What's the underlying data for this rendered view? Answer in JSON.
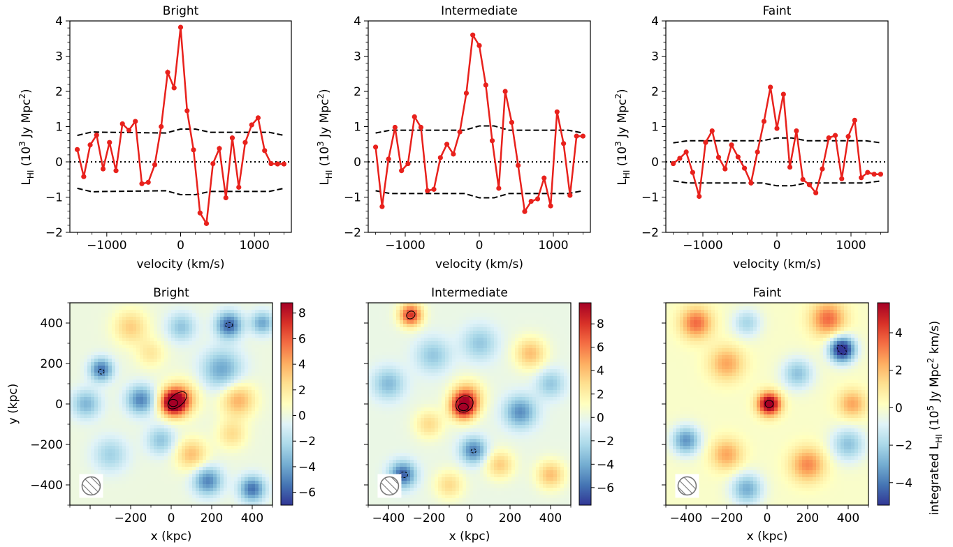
{
  "chart_data": [
    {
      "type": "line",
      "title": "Bright",
      "xlabel": "velocity (km/s)",
      "ylabel": "L",
      "ylabel_sub": "HI",
      "ylabel_unit": "(10",
      "ylabel_unit_sup": "3",
      "ylabel_unit_rest": " Jy Mpc",
      "ylabel_unit_sup2": "2",
      "ylabel_unit_end": ")",
      "xlim": [
        -1500,
        1500
      ],
      "ylim": [
        -2,
        4
      ],
      "xticks": [
        -1000,
        0,
        1000
      ],
      "xtick_labels": [
        "−1000",
        "0",
        "1000"
      ],
      "yticks": [
        -2,
        -1,
        0,
        1,
        2,
        3,
        4
      ],
      "ytick_labels": [
        "−2",
        "−1",
        "0",
        "1",
        "2",
        "3",
        "4"
      ],
      "series": [
        {
          "color": "#e8211c",
          "x": [
            -1400,
            -1312,
            -1225,
            -1138,
            -1050,
            -963,
            -875,
            -788,
            -700,
            -613,
            -525,
            -438,
            -350,
            -263,
            -175,
            -88,
            0,
            88,
            175,
            263,
            350,
            438,
            525,
            613,
            700,
            788,
            875,
            963,
            1050,
            1138,
            1225,
            1313,
            1400
          ],
          "y": [
            0.35,
            -0.42,
            0.48,
            0.76,
            -0.2,
            0.55,
            -0.25,
            1.08,
            0.9,
            1.15,
            -0.62,
            -0.58,
            -0.08,
            1.0,
            2.54,
            2.1,
            3.82,
            1.45,
            0.34,
            -1.45,
            -1.75,
            -0.05,
            0.38,
            -1.02,
            0.68,
            -0.72,
            0.55,
            1.05,
            1.25,
            0.32,
            -0.05,
            -0.06,
            -0.06
          ]
        }
      ],
      "envelope_upper": {
        "x": [
          -1400,
          -1200,
          -1000,
          -600,
          -200,
          0,
          200,
          400,
          600,
          1000,
          1200,
          1400
        ],
        "y": [
          0.75,
          0.85,
          0.84,
          0.83,
          0.82,
          0.93,
          0.93,
          0.84,
          0.84,
          0.84,
          0.84,
          0.75
        ]
      },
      "envelope_lower": {
        "x": [
          -1400,
          -1200,
          -1000,
          -600,
          -200,
          0,
          200,
          400,
          600,
          1000,
          1200,
          1400
        ],
        "y": [
          -0.75,
          -0.85,
          -0.84,
          -0.83,
          -0.82,
          -0.93,
          -0.93,
          -0.84,
          -0.84,
          -0.84,
          -0.84,
          -0.75
        ]
      }
    },
    {
      "type": "line",
      "title": "Intermediate",
      "xlabel": "velocity (km/s)",
      "ylabel": "L",
      "ylabel_sub": "HI",
      "ylabel_unit": "(10",
      "ylabel_unit_sup": "3",
      "ylabel_unit_rest": " Jy Mpc",
      "ylabel_unit_sup2": "2",
      "ylabel_unit_end": ")",
      "xlim": [
        -1500,
        1500
      ],
      "ylim": [
        -2,
        4
      ],
      "xticks": [
        -1000,
        0,
        1000
      ],
      "xtick_labels": [
        "−1000",
        "0",
        "1000"
      ],
      "yticks": [
        -2,
        -1,
        0,
        1,
        2,
        3,
        4
      ],
      "ytick_labels": [
        "−2",
        "−1",
        "0",
        "1",
        "2",
        "3",
        "4"
      ],
      "series": [
        {
          "color": "#e8211c",
          "x": [
            -1400,
            -1312,
            -1225,
            -1138,
            -1050,
            -963,
            -875,
            -788,
            -700,
            -613,
            -525,
            -438,
            -350,
            -263,
            -175,
            -88,
            0,
            88,
            175,
            263,
            350,
            438,
            525,
            613,
            700,
            788,
            875,
            963,
            1050,
            1138,
            1225,
            1313,
            1400
          ],
          "y": [
            0.42,
            -1.27,
            0.08,
            0.98,
            -0.25,
            -0.05,
            1.28,
            0.98,
            -0.82,
            -0.78,
            0.12,
            0.5,
            0.22,
            0.85,
            1.95,
            3.6,
            3.3,
            2.18,
            0.6,
            -0.75,
            2.0,
            1.12,
            -0.1,
            -1.41,
            -1.12,
            -1.05,
            -0.46,
            -1.25,
            1.42,
            0.52,
            -0.95,
            0.73,
            0.73
          ]
        }
      ],
      "envelope_upper": {
        "x": [
          -1400,
          -1200,
          -1000,
          -600,
          -200,
          0,
          200,
          400,
          600,
          1000,
          1200,
          1400
        ],
        "y": [
          0.82,
          0.9,
          0.9,
          0.9,
          0.9,
          1.02,
          1.02,
          0.9,
          0.9,
          0.9,
          0.9,
          0.82
        ]
      },
      "envelope_lower": {
        "x": [
          -1400,
          -1200,
          -1000,
          -600,
          -200,
          0,
          200,
          400,
          600,
          1000,
          1200,
          1400
        ],
        "y": [
          -0.82,
          -0.9,
          -0.9,
          -0.9,
          -0.9,
          -1.02,
          -1.02,
          -0.9,
          -0.9,
          -0.9,
          -0.9,
          -0.82
        ]
      }
    },
    {
      "type": "line",
      "title": "Faint",
      "xlabel": "velocity (km/s)",
      "ylabel": "L",
      "ylabel_sub": "HI",
      "ylabel_unit": "(10",
      "ylabel_unit_sup": "3",
      "ylabel_unit_rest": " Jy Mpc",
      "ylabel_unit_sup2": "2",
      "ylabel_unit_end": ")",
      "xlim": [
        -1500,
        1500
      ],
      "ylim": [
        -2,
        4
      ],
      "xticks": [
        -1000,
        0,
        1000
      ],
      "xtick_labels": [
        "−1000",
        "0",
        "1000"
      ],
      "yticks": [
        -2,
        -1,
        0,
        1,
        2,
        3,
        4
      ],
      "ytick_labels": [
        "−2",
        "−1",
        "0",
        "1",
        "2",
        "3",
        "4"
      ],
      "series": [
        {
          "color": "#e8211c",
          "x": [
            -1400,
            -1312,
            -1225,
            -1138,
            -1050,
            -963,
            -875,
            -788,
            -700,
            -613,
            -525,
            -438,
            -350,
            -263,
            -175,
            -88,
            0,
            88,
            175,
            263,
            350,
            438,
            525,
            613,
            700,
            788,
            875,
            963,
            1050,
            1138,
            1225,
            1313,
            1400
          ],
          "y": [
            -0.05,
            0.1,
            0.28,
            -0.3,
            -0.98,
            0.55,
            0.88,
            0.13,
            -0.2,
            0.48,
            0.14,
            -0.18,
            -0.6,
            0.28,
            1.15,
            2.12,
            0.95,
            1.92,
            -0.15,
            0.88,
            -0.5,
            -0.65,
            -0.88,
            -0.2,
            0.68,
            0.75,
            -0.48,
            0.72,
            1.18,
            -0.45,
            -0.3,
            -0.35,
            -0.35
          ]
        }
      ],
      "envelope_upper": {
        "x": [
          -1400,
          -1200,
          -1000,
          -600,
          -200,
          0,
          200,
          400,
          600,
          1000,
          1200,
          1400
        ],
        "y": [
          0.54,
          0.6,
          0.6,
          0.6,
          0.6,
          0.68,
          0.68,
          0.6,
          0.6,
          0.6,
          0.6,
          0.54
        ]
      },
      "envelope_lower": {
        "x": [
          -1400,
          -1200,
          -1000,
          -600,
          -200,
          0,
          200,
          400,
          600,
          1000,
          1200,
          1400
        ],
        "y": [
          -0.54,
          -0.6,
          -0.6,
          -0.6,
          -0.6,
          -0.68,
          -0.68,
          -0.6,
          -0.6,
          -0.6,
          -0.6,
          -0.54
        ]
      }
    },
    {
      "type": "heatmap",
      "title": "Bright",
      "xlabel": "x (kpc)",
      "ylabel": "y (kpc)",
      "xlim": [
        -500,
        500
      ],
      "ylim": [
        -500,
        500
      ],
      "xticks": [
        -400,
        -200,
        0,
        200,
        400
      ],
      "xtick_labels": [
        "",
        "−200",
        "0",
        "200",
        "400"
      ],
      "yticks": [
        -400,
        -200,
        0,
        200,
        400
      ],
      "ytick_labels": [
        "−400",
        "−200",
        "0",
        "200",
        "400"
      ],
      "colorbar": {
        "vmin": -7,
        "vmax": 8.8,
        "ticks": [
          -6,
          -4,
          -2,
          0,
          2,
          4,
          6,
          8
        ],
        "tick_labels": [
          "−6",
          "−4",
          "−2",
          "0",
          "2",
          "4",
          "6",
          "8"
        ]
      },
      "blobs": [
        {
          "x": 10,
          "y": 5,
          "sigma": 45,
          "value": 9.0
        },
        {
          "x": 50,
          "y": 30,
          "sigma": 60,
          "value": 4.0
        },
        {
          "x": 285,
          "y": 390,
          "sigma": 45,
          "value": -6.0
        },
        {
          "x": -345,
          "y": 170,
          "sigma": 40,
          "value": -5.5
        },
        {
          "x": -150,
          "y": 20,
          "sigma": 50,
          "value": -5.0
        },
        {
          "x": 250,
          "y": 170,
          "sigma": 70,
          "value": -4.0
        },
        {
          "x": 330,
          "y": 20,
          "sigma": 60,
          "value": 4.0
        },
        {
          "x": -420,
          "y": 0,
          "sigma": 50,
          "value": -3.5
        },
        {
          "x": 180,
          "y": -380,
          "sigma": 50,
          "value": -5.0
        },
        {
          "x": 400,
          "y": -420,
          "sigma": 45,
          "value": -5.5
        },
        {
          "x": 100,
          "y": -250,
          "sigma": 55,
          "value": 3.5
        },
        {
          "x": -50,
          "y": -180,
          "sigma": 50,
          "value": -3.0
        },
        {
          "x": -200,
          "y": 380,
          "sigma": 60,
          "value": 3.0
        },
        {
          "x": 50,
          "y": 380,
          "sigma": 50,
          "value": -3.0
        },
        {
          "x": -300,
          "y": -250,
          "sigma": 60,
          "value": -2.5
        },
        {
          "x": 450,
          "y": 400,
          "sigma": 40,
          "value": -4.0
        },
        {
          "x": -100,
          "y": 250,
          "sigma": 50,
          "value": 2.0
        },
        {
          "x": 300,
          "y": -150,
          "sigma": 50,
          "value": 2.5
        }
      ],
      "contours": [
        {
          "x": 10,
          "y": 5,
          "rx": 22,
          "ry": 18,
          "rot": 0,
          "style": "solid"
        },
        {
          "x": 30,
          "y": 18,
          "rx": 55,
          "ry": 30,
          "rot": 40,
          "style": "solid"
        },
        {
          "x": 285,
          "y": 390,
          "rx": 18,
          "ry": 12,
          "rot": 0,
          "style": "dashed"
        },
        {
          "x": -345,
          "y": 160,
          "rx": 14,
          "ry": 12,
          "rot": 0,
          "style": "dashed"
        }
      ],
      "beam": {
        "x": -395,
        "y": -405,
        "r": 42
      }
    },
    {
      "type": "heatmap",
      "title": "Intermediate",
      "xlabel": "x (kpc)",
      "xlim": [
        -500,
        500
      ],
      "ylim": [
        -500,
        500
      ],
      "xticks": [
        -400,
        -200,
        0,
        200,
        400
      ],
      "xtick_labels": [
        "−400",
        "−200",
        "0",
        "200",
        "400"
      ],
      "yticks": [
        -400,
        -200,
        0,
        200,
        400
      ],
      "ytick_labels": [],
      "colorbar": {
        "vmin": -7.5,
        "vmax": 9.8,
        "ticks": [
          -6,
          -4,
          -2,
          0,
          2,
          4,
          6,
          8
        ],
        "tick_labels": [
          "−6",
          "−4",
          "−2",
          "0",
          "2",
          "4",
          "6",
          "8"
        ]
      },
      "blobs": [
        {
          "x": -30,
          "y": -15,
          "sigma": 45,
          "value": 9.0
        },
        {
          "x": -10,
          "y": 40,
          "sigma": 55,
          "value": 4.5
        },
        {
          "x": -290,
          "y": 440,
          "sigma": 40,
          "value": 8.0
        },
        {
          "x": -330,
          "y": -350,
          "sigma": 45,
          "value": -6.5
        },
        {
          "x": 20,
          "y": -230,
          "sigma": 45,
          "value": -5.5
        },
        {
          "x": 250,
          "y": -40,
          "sigma": 55,
          "value": -5.0
        },
        {
          "x": -180,
          "y": 240,
          "sigma": 60,
          "value": -3.0
        },
        {
          "x": 300,
          "y": 250,
          "sigma": 55,
          "value": 4.0
        },
        {
          "x": -400,
          "y": 100,
          "sigma": 55,
          "value": -3.5
        },
        {
          "x": 400,
          "y": -350,
          "sigma": 50,
          "value": 4.0
        },
        {
          "x": -200,
          "y": -100,
          "sigma": 50,
          "value": 3.0
        },
        {
          "x": 150,
          "y": -300,
          "sigma": 50,
          "value": 3.5
        },
        {
          "x": 50,
          "y": 300,
          "sigma": 60,
          "value": -3.0
        },
        {
          "x": -100,
          "y": -400,
          "sigma": 50,
          "value": 3.0
        },
        {
          "x": 400,
          "y": 100,
          "sigma": 50,
          "value": -3.0
        }
      ],
      "contours": [
        {
          "x": -30,
          "y": -15,
          "rx": 24,
          "ry": 18,
          "rot": 0,
          "style": "solid"
        },
        {
          "x": -25,
          "y": 0,
          "rx": 45,
          "ry": 38,
          "rot": 35,
          "style": "solid"
        },
        {
          "x": -290,
          "y": 440,
          "rx": 22,
          "ry": 18,
          "rot": 30,
          "style": "solid"
        },
        {
          "x": -325,
          "y": -350,
          "rx": 20,
          "ry": 14,
          "rot": 0,
          "style": "dashed"
        },
        {
          "x": 20,
          "y": -232,
          "rx": 12,
          "ry": 10,
          "rot": 0,
          "style": "dashed"
        }
      ],
      "beam": {
        "x": -395,
        "y": -405,
        "r": 42
      }
    },
    {
      "type": "heatmap",
      "title": "Faint",
      "xlabel": "x (kpc)",
      "xlim": [
        -500,
        500
      ],
      "ylim": [
        -500,
        500
      ],
      "xticks": [
        -400,
        -200,
        0,
        200,
        400
      ],
      "xtick_labels": [
        "−400",
        "−200",
        "0",
        "200",
        "400"
      ],
      "yticks": [
        -400,
        -200,
        0,
        200,
        400
      ],
      "ytick_labels": [],
      "colorbar": {
        "vmin": -5.2,
        "vmax": 5.6,
        "ticks": [
          -4,
          -2,
          0,
          2,
          4
        ],
        "tick_labels": [
          "−4",
          "−2",
          "0",
          "2",
          "4"
        ],
        "label": "integrated L",
        "label_sub": "HI",
        "label_unit": " (10",
        "label_sup": "5",
        "label_rest": " Jy Mpc",
        "label_sup2": "2",
        "label_end": " km/s)"
      },
      "blobs": [
        {
          "x": 10,
          "y": 0,
          "sigma": 40,
          "value": 6.5
        },
        {
          "x": 370,
          "y": 270,
          "sigma": 45,
          "value": -6.0
        },
        {
          "x": 300,
          "y": 420,
          "sigma": 60,
          "value": 3.5
        },
        {
          "x": -350,
          "y": 400,
          "sigma": 55,
          "value": 3.5
        },
        {
          "x": -400,
          "y": -180,
          "sigma": 50,
          "value": -3.5
        },
        {
          "x": -100,
          "y": -420,
          "sigma": 55,
          "value": -3.0
        },
        {
          "x": 200,
          "y": -300,
          "sigma": 60,
          "value": 3.0
        },
        {
          "x": -200,
          "y": 200,
          "sigma": 60,
          "value": 2.5
        },
        {
          "x": 400,
          "y": -200,
          "sigma": 60,
          "value": -2.5
        },
        {
          "x": -200,
          "y": -250,
          "sigma": 55,
          "value": 2.5
        },
        {
          "x": 150,
          "y": 150,
          "sigma": 55,
          "value": -2.5
        },
        {
          "x": -100,
          "y": 400,
          "sigma": 50,
          "value": -2.0
        },
        {
          "x": 420,
          "y": 0,
          "sigma": 50,
          "value": 2.5
        }
      ],
      "contours": [
        {
          "x": 10,
          "y": 0,
          "rx": 20,
          "ry": 18,
          "rot": 0,
          "style": "solid"
        },
        {
          "x": 368,
          "y": 268,
          "rx": 28,
          "ry": 16,
          "rot": -45,
          "style": "dashed"
        }
      ],
      "beam": {
        "x": -395,
        "y": -405,
        "r": 42
      }
    }
  ]
}
